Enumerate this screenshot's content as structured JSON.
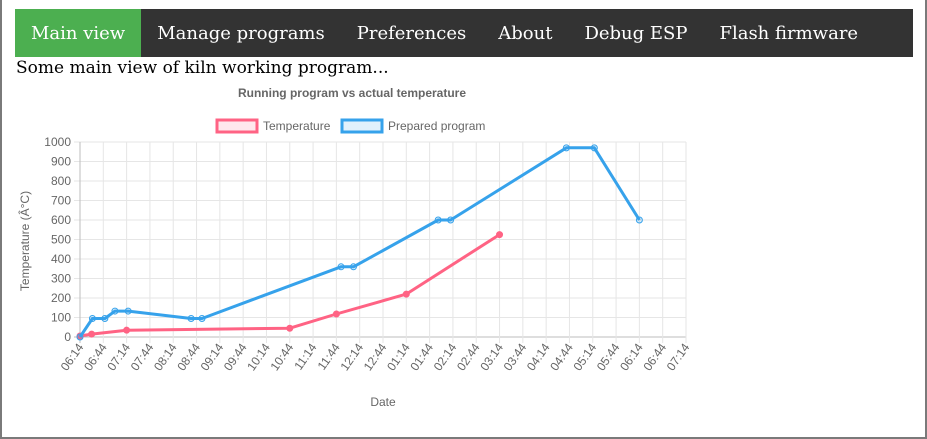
{
  "nav": {
    "items": [
      {
        "label": "Main view",
        "active": true
      },
      {
        "label": "Manage programs",
        "active": false
      },
      {
        "label": "Preferences",
        "active": false
      },
      {
        "label": "About",
        "active": false
      },
      {
        "label": "Debug ESP",
        "active": false
      },
      {
        "label": "Flash firmware",
        "active": false
      }
    ],
    "active_color": "#4caf50",
    "bar_color": "#333333"
  },
  "main": {
    "intro_text": "Some main view of kiln working program..."
  },
  "chart_data": {
    "type": "line",
    "title": "Running program vs actual temperature",
    "xlabel": "Date",
    "ylabel": "Temperature (Â°C)",
    "ylim": [
      0,
      1000
    ],
    "yticks": [
      0,
      100,
      200,
      300,
      400,
      500,
      600,
      700,
      800,
      900,
      1000
    ],
    "xticks": [
      "06:14",
      "06:44",
      "07:14",
      "07:44",
      "08:14",
      "08:44",
      "09:14",
      "09:44",
      "10:14",
      "10:44",
      "11:14",
      "11:44",
      "12:14",
      "12:44",
      "01:14",
      "01:44",
      "02:14",
      "02:44",
      "03:14",
      "03:44",
      "04:14",
      "04:44",
      "05:14",
      "05:44",
      "06:14",
      "06:44",
      "07:14"
    ],
    "x_tick_interval_minutes": 30,
    "grid": true,
    "legend_position": "top",
    "series": [
      {
        "name": "Temperature",
        "color": "#ff6384",
        "points": [
          {
            "x": "06:14",
            "y": 5
          },
          {
            "x": "06:29",
            "y": 15
          },
          {
            "x": "07:14",
            "y": 35
          },
          {
            "x": "10:44",
            "y": 45
          },
          {
            "x": "11:44",
            "y": 118
          },
          {
            "x": "01:14",
            "y": 220
          },
          {
            "x": "03:14",
            "y": 525
          }
        ]
      },
      {
        "name": "Prepared program",
        "color": "#36a2eb",
        "points": [
          {
            "x": "06:14",
            "y": 0
          },
          {
            "x": "06:30",
            "y": 95
          },
          {
            "x": "06:46",
            "y": 95
          },
          {
            "x": "06:59",
            "y": 133
          },
          {
            "x": "07:16",
            "y": 133
          },
          {
            "x": "08:37",
            "y": 95
          },
          {
            "x": "08:51",
            "y": 95
          },
          {
            "x": "11:50",
            "y": 360
          },
          {
            "x": "12:06",
            "y": 360
          },
          {
            "x": "01:55",
            "y": 600
          },
          {
            "x": "02:11",
            "y": 600
          },
          {
            "x": "04:40",
            "y": 970
          },
          {
            "x": "05:16",
            "y": 970
          },
          {
            "x": "06:14",
            "y": 600
          }
        ]
      }
    ]
  }
}
